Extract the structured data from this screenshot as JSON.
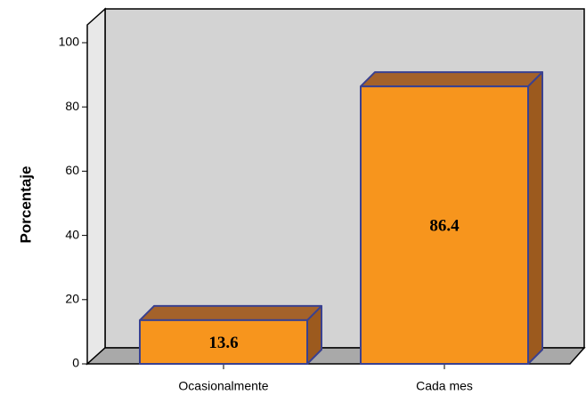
{
  "chart_data": {
    "type": "bar3d",
    "y_label": "Porcentaje",
    "categories": [
      "Ocasionalmente",
      "Cada mes"
    ],
    "values": [
      13.6,
      86.4
    ],
    "color": "#f7951d",
    "ylim": [
      0,
      100
    ],
    "yticks": [
      0,
      20,
      40,
      60,
      80,
      100
    ]
  }
}
